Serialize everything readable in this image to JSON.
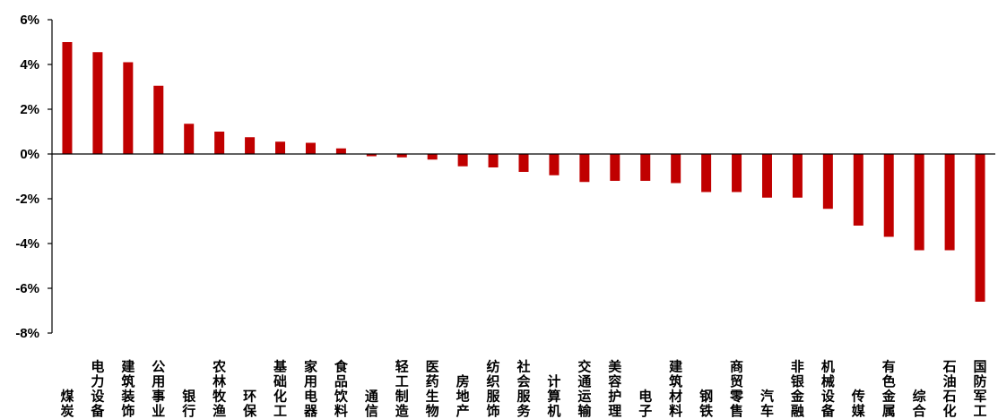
{
  "chart_data": {
    "type": "bar",
    "title": "",
    "xlabel": "",
    "ylabel": "",
    "ylim": [
      -8,
      6
    ],
    "yticks": [
      6,
      4,
      2,
      0,
      -2,
      -4,
      -6,
      -8
    ],
    "ytick_labels": [
      "6%",
      "4%",
      "2%",
      "0%",
      "-2%",
      "-4%",
      "-6%",
      "-8%"
    ],
    "grid": false,
    "bar_color": "#c00000",
    "categories": [
      "煤炭",
      "电力设备",
      "建筑装饰",
      "公用事业",
      "银行",
      "农林牧渔",
      "环保",
      "基础化工",
      "家用电器",
      "食品饮料",
      "通信",
      "轻工制造",
      "医药生物",
      "房地产",
      "纺织服饰",
      "社会服务",
      "计算机",
      "交通运输",
      "美容护理",
      "电子",
      "建筑材料",
      "钢铁",
      "商贸零售",
      "汽车",
      "非银金融",
      "机械设备",
      "传媒",
      "有色金属",
      "综合",
      "石油石化",
      "国防军工"
    ],
    "values": [
      5.0,
      4.55,
      4.1,
      3.05,
      1.35,
      1.0,
      0.75,
      0.55,
      0.5,
      0.25,
      -0.1,
      -0.15,
      -0.25,
      -0.55,
      -0.6,
      -0.8,
      -0.95,
      -1.25,
      -1.2,
      -1.2,
      -1.3,
      -1.7,
      -1.7,
      -1.95,
      -1.95,
      -2.45,
      -3.2,
      -3.7,
      -4.3,
      -4.3,
      -6.6
    ]
  }
}
